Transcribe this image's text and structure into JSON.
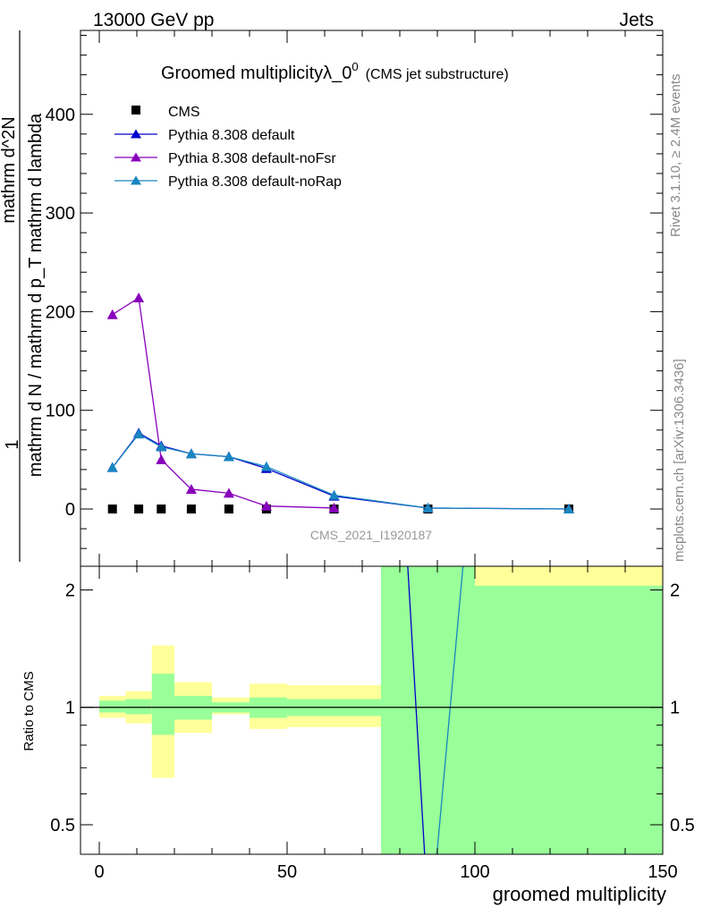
{
  "header": {
    "left": "13000 GeV pp",
    "right": "Jets"
  },
  "side_labels": {
    "rivet": "Rivet 3.1.10, ≥ 2.4M events",
    "mcplots": "mcplots.cern.ch [arXiv:1306.3436]"
  },
  "watermark": "CMS_2021_I1920187",
  "chart_data": [
    {
      "type": "line",
      "title": "Groomed multiplicityλ_0",
      "title_sup": "0",
      "title_suffix": "(CMS jet substructure)",
      "ylabel_num": "1",
      "ylabel_den": "mathrm d N / mathrm d p_T mathrm d lambda",
      "ylabel_top": "mathrm d^2N",
      "xlim": [
        -5,
        150
      ],
      "ylim": [
        -58,
        485
      ],
      "yticks": [
        0,
        100,
        200,
        300,
        400
      ],
      "ytick_labels": [
        "0",
        "100",
        "200",
        "300",
        "400"
      ],
      "legend_position": "top-left",
      "series": [
        {
          "name": "CMS",
          "marker": "square",
          "color": "#000000",
          "x": [
            3.5,
            10.5,
            16.5,
            24.5,
            34.5,
            44.5,
            62.5,
            87.5,
            125
          ],
          "y": [
            0,
            0,
            0,
            0,
            0,
            0,
            0,
            0,
            0
          ]
        },
        {
          "name": "Pythia 8.308 default",
          "marker": "triangle",
          "color": "#0000cc",
          "x": [
            3.5,
            10.5,
            16.5,
            24.5,
            34.5,
            44.5,
            62.5,
            87.5,
            125
          ],
          "y": [
            42,
            77,
            64,
            56,
            53,
            41,
            13,
            1,
            0
          ]
        },
        {
          "name": "Pythia 8.308 default-noFsr",
          "marker": "triangle",
          "color": "#8800bb",
          "x": [
            3.5,
            10.5,
            16.5,
            24.5,
            34.5,
            44.5,
            62.5
          ],
          "y": [
            197,
            214,
            50,
            20,
            16,
            3,
            1
          ]
        },
        {
          "name": "Pythia 8.308 default-noRap",
          "marker": "triangle",
          "color": "#1a86c0",
          "x": [
            3.5,
            10.5,
            16.5,
            24.5,
            34.5,
            44.5,
            62.5,
            87.5,
            125
          ],
          "y": [
            42,
            76,
            63,
            56,
            53,
            43,
            14,
            1,
            0
          ]
        }
      ]
    },
    {
      "type": "area",
      "ylabel": "Ratio to CMS",
      "xlabel": "groomed multiplicity",
      "xlim": [
        -5,
        150
      ],
      "ylim": [
        0.42,
        2.3
      ],
      "log_y": true,
      "xticks": [
        0,
        50,
        100,
        150
      ],
      "xtick_labels": [
        "0",
        "50",
        "100",
        "150"
      ],
      "yticks": [
        0.5,
        1,
        2
      ],
      "ytick_labels": [
        "0.5",
        "1",
        "2"
      ],
      "bands": [
        {
          "x0": 0,
          "x1": 7,
          "yellow": [
            0.94,
            1.07
          ],
          "green": [
            0.97,
            1.04
          ]
        },
        {
          "x0": 7,
          "x1": 14,
          "yellow": [
            0.91,
            1.1
          ],
          "green": [
            0.96,
            1.05
          ]
        },
        {
          "x0": 14,
          "x1": 20,
          "yellow": [
            0.66,
            1.44
          ],
          "green": [
            0.85,
            1.22
          ]
        },
        {
          "x0": 20,
          "x1": 30,
          "yellow": [
            0.86,
            1.16
          ],
          "green": [
            0.93,
            1.07
          ]
        },
        {
          "x0": 30,
          "x1": 40,
          "yellow": [
            0.96,
            1.06
          ],
          "green": [
            0.97,
            1.03
          ]
        },
        {
          "x0": 40,
          "x1": 50,
          "yellow": [
            0.88,
            1.15
          ],
          "green": [
            0.94,
            1.06
          ]
        },
        {
          "x0": 50,
          "x1": 75,
          "yellow": [
            0.89,
            1.14
          ],
          "green": [
            0.95,
            1.05
          ]
        },
        {
          "x0": 75,
          "x1": 100,
          "yellow": [
            0.3,
            3.0
          ],
          "green": [
            0.3,
            3.0
          ]
        },
        {
          "x0": 100,
          "x1": 150,
          "yellow": [
            0.3,
            3.0
          ],
          "green": [
            0.3,
            2.05
          ]
        }
      ],
      "ratio_lines": [
        {
          "name": "Pythia 8.308 default",
          "color": "#0000cc",
          "x": [
            82,
            87.5
          ],
          "y": [
            2.4,
            0.3
          ]
        },
        {
          "name": "Pythia 8.308 default-noRap",
          "color": "#1a86c0",
          "x": [
            88.5,
            97
          ],
          "y": [
            0.3,
            2.4
          ]
        }
      ],
      "reference_line": 1
    }
  ]
}
